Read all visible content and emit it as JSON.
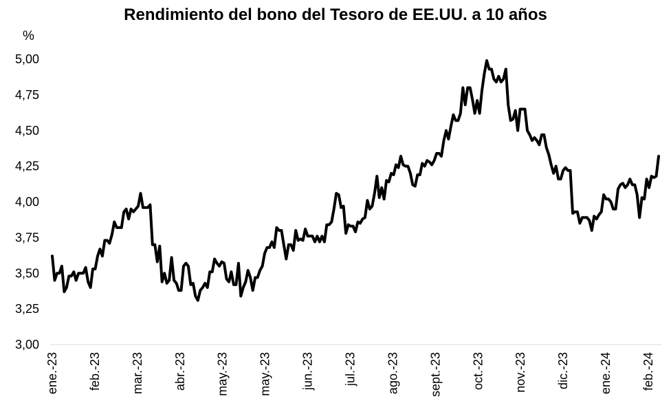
{
  "chart_data": {
    "type": "line",
    "title": "Rendimiento del bono del Tesoro de EE.UU. a 10 años",
    "ylabel": "%",
    "xlabel": "",
    "ylim": [
      3.0,
      5.0
    ],
    "yticks": [
      "3,00",
      "3,25",
      "3,50",
      "3,75",
      "4,00",
      "4,25",
      "4,50",
      "4,75",
      "5,00"
    ],
    "xticks": [
      "ene.-23",
      "feb.-23",
      "mar.-23",
      "abr.-23",
      "may.-23",
      "may.-23",
      "jun.-23",
      "jul.-23",
      "ago.-23",
      "sept.-23",
      "oct.-23",
      "nov.-23",
      "dic.-23",
      "ene.-24",
      "feb.-24"
    ],
    "grid": false,
    "legend": "none",
    "series_color": "#000000",
    "series": [
      {
        "values": [
          3.62,
          3.45,
          3.5,
          3.5,
          3.55,
          3.37,
          3.4,
          3.48,
          3.48,
          3.51,
          3.45,
          3.5,
          3.5,
          3.5,
          3.54,
          3.44,
          3.4,
          3.53,
          3.53,
          3.62,
          3.67,
          3.62,
          3.73,
          3.73,
          3.71,
          3.77,
          3.86,
          3.82,
          3.82,
          3.82,
          3.93,
          3.95,
          3.88,
          3.95,
          3.93,
          3.95,
          3.97,
          4.06,
          3.96,
          3.96,
          3.96,
          3.98,
          3.7,
          3.7,
          3.58,
          3.69,
          3.44,
          3.5,
          3.43,
          3.45,
          3.61,
          3.45,
          3.43,
          3.38,
          3.38,
          3.55,
          3.57,
          3.55,
          3.42,
          3.43,
          3.34,
          3.31,
          3.38,
          3.4,
          3.43,
          3.4,
          3.51,
          3.51,
          3.6,
          3.57,
          3.55,
          3.58,
          3.57,
          3.46,
          3.44,
          3.51,
          3.42,
          3.42,
          3.57,
          3.34,
          3.4,
          3.44,
          3.52,
          3.47,
          3.38,
          3.47,
          3.47,
          3.52,
          3.55,
          3.64,
          3.68,
          3.68,
          3.72,
          3.68,
          3.82,
          3.8,
          3.8,
          3.7,
          3.6,
          3.7,
          3.7,
          3.66,
          3.8,
          3.73,
          3.74,
          3.73,
          3.81,
          3.76,
          3.76,
          3.76,
          3.72,
          3.76,
          3.72,
          3.76,
          3.72,
          3.84,
          3.84,
          3.86,
          3.95,
          4.06,
          4.05,
          3.96,
          3.97,
          3.78,
          3.84,
          3.83,
          3.83,
          3.79,
          3.86,
          3.85,
          3.88,
          3.89,
          4.01,
          3.95,
          3.97,
          4.06,
          4.18,
          4.03,
          4.1,
          4.02,
          4.15,
          4.14,
          4.2,
          4.19,
          4.26,
          4.24,
          4.32,
          4.26,
          4.25,
          4.25,
          4.2,
          4.12,
          4.11,
          4.19,
          4.19,
          4.27,
          4.25,
          4.29,
          4.28,
          4.26,
          4.29,
          4.34,
          4.34,
          4.32,
          4.43,
          4.5,
          4.44,
          4.53,
          4.61,
          4.57,
          4.57,
          4.62,
          4.8,
          4.68,
          4.8,
          4.8,
          4.72,
          4.62,
          4.71,
          4.62,
          4.78,
          4.9,
          4.99,
          4.93,
          4.93,
          4.86,
          4.84,
          4.88,
          4.84,
          4.86,
          4.93,
          4.68,
          4.57,
          4.58,
          4.64,
          4.5,
          4.65,
          4.65,
          4.65,
          4.5,
          4.47,
          4.43,
          4.45,
          4.43,
          4.4,
          4.47,
          4.47,
          4.38,
          4.33,
          4.26,
          4.2,
          4.25,
          4.16,
          4.16,
          4.22,
          4.24,
          4.22,
          4.22,
          3.92,
          3.93,
          3.93,
          3.85,
          3.89,
          3.89,
          3.89,
          3.87,
          3.8,
          3.9,
          3.88,
          3.91,
          3.93,
          4.05,
          4.02,
          4.02,
          4.0,
          3.95,
          3.95,
          4.09,
          4.12,
          4.13,
          4.1,
          4.12,
          4.16,
          4.12,
          4.12,
          4.05,
          3.89,
          4.03,
          4.02,
          4.16,
          4.1,
          4.18,
          4.17,
          4.18,
          4.32
        ]
      }
    ]
  }
}
